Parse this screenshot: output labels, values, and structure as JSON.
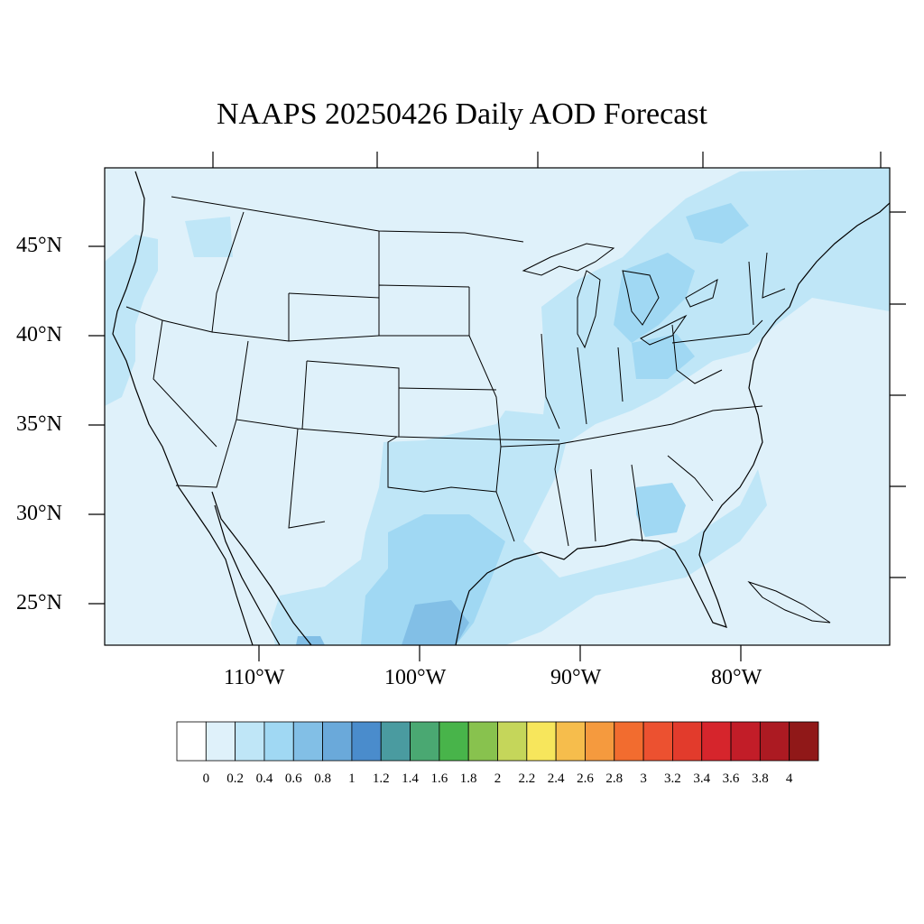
{
  "title": "NAAPS 20250426 Daily AOD Forecast",
  "map": {
    "region": "Contiguous United States",
    "projection_extent": {
      "lon_min": -125,
      "lon_max": -66,
      "lat_min": 22,
      "lat_max": 50
    },
    "background_color": "#dff1fa",
    "lat_labels": [
      {
        "text": "45°N",
        "lat": 45
      },
      {
        "text": "40°N",
        "lat": 40
      },
      {
        "text": "35°N",
        "lat": 35
      },
      {
        "text": "30°N",
        "lat": 30
      },
      {
        "text": "25°N",
        "lat": 25
      }
    ],
    "lon_labels": [
      {
        "text": "110°W",
        "lon": -110
      },
      {
        "text": "100°W",
        "lon": -100
      },
      {
        "text": "90°W",
        "lon": -90
      },
      {
        "text": "80°W",
        "lon": -80
      }
    ]
  },
  "colorbar": {
    "labels": [
      "0",
      "0.2",
      "0.4",
      "0.6",
      "0.8",
      "1",
      "1.2",
      "1.4",
      "1.6",
      "1.8",
      "2",
      "2.2",
      "2.4",
      "2.6",
      "2.8",
      "3",
      "3.2",
      "3.4",
      "3.6",
      "3.8",
      "4"
    ],
    "colors": [
      "#ffffff",
      "#dff1fa",
      "#bfe6f7",
      "#a0d8f3",
      "#82bfe6",
      "#6aa9da",
      "#4a8ccc",
      "#4a9ba0",
      "#4aa872",
      "#48b44a",
      "#88c24e",
      "#c5d65a",
      "#f7e65c",
      "#f6bd4c",
      "#f59a3e",
      "#f26c2f",
      "#ec5130",
      "#e23b2c",
      "#d6252c",
      "#c21d28",
      "#ac1a22",
      "#901818"
    ]
  },
  "chart_data": {
    "type": "heatmap",
    "title": "NAAPS 20250426 Daily AOD Forecast",
    "variable": "AOD",
    "color_scale_levels": [
      0,
      0.2,
      0.4,
      0.6,
      0.8,
      1,
      1.2,
      1.4,
      1.6,
      1.8,
      2,
      2.2,
      2.4,
      2.6,
      2.8,
      3,
      3.2,
      3.4,
      3.6,
      3.8,
      4
    ],
    "features": [
      {
        "region": "background (most of CONUS and oceans)",
        "aod_range": [
          0,
          0.2
        ]
      },
      {
        "region": "Texas / Gulf coast plume",
        "aod_range": [
          0.2,
          0.6
        ]
      },
      {
        "region": "South Texas / northeast Mexico",
        "aod_range": [
          0.6,
          0.8
        ]
      },
      {
        "region": "Ohio Valley / Great Lakes / Northeast band",
        "aod_range": [
          0.2,
          0.4
        ]
      },
      {
        "region": "Georgia / southeast coast",
        "aod_range": [
          0.2,
          0.6
        ]
      },
      {
        "region": "Pacific Northwest / California coast",
        "aod_range": [
          0.2,
          0.4
        ]
      }
    ]
  }
}
